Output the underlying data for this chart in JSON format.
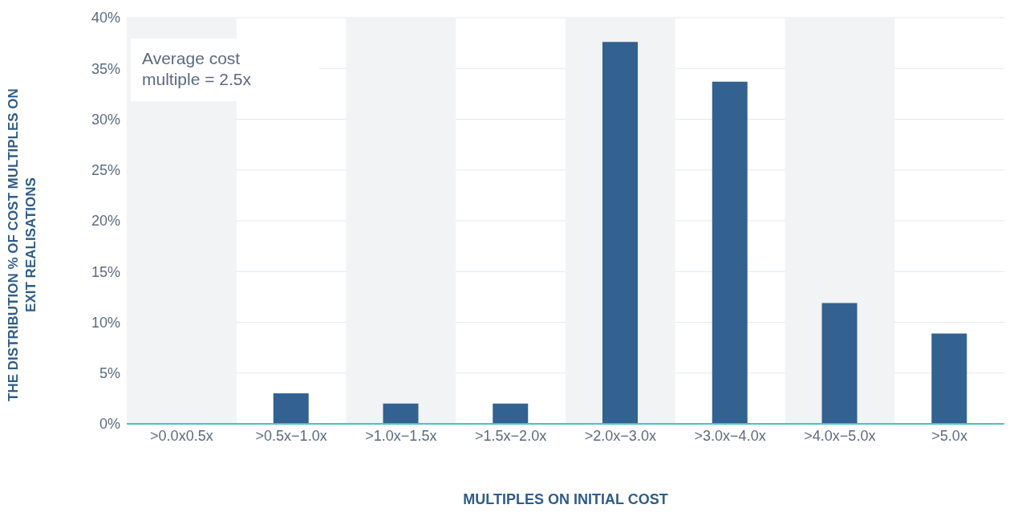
{
  "chart_data": {
    "type": "bar",
    "xlabel": "MULTIPLES ON INITIAL COST",
    "ylabel": "THE DISTRIBUTION % OF COST MULTIPLES ON EXIT REALISATIONS",
    "categories": [
      ">0.0x0.5x",
      ">0.5x−1.0x",
      ">1.0x−1.5x",
      ">1.5x−2.0x",
      ">2.0x−3.0x",
      ">3.0x−4.0x",
      ">4.0x−5.0x",
      ">5.0x"
    ],
    "values": [
      0,
      3,
      2,
      2,
      37.6,
      33.7,
      11.9,
      8.9
    ],
    "color": "#336190",
    "ylim": [
      0,
      40
    ],
    "yticks": [
      {
        "value": 0,
        "label": "0%"
      },
      {
        "value": 5,
        "label": "5%"
      },
      {
        "value": 10,
        "label": "10%"
      },
      {
        "value": 15,
        "label": "15%"
      },
      {
        "value": 20,
        "label": "20%"
      },
      {
        "value": 25,
        "label": "25%"
      },
      {
        "value": 30,
        "label": "30%"
      },
      {
        "value": 35,
        "label": "35%"
      },
      {
        "value": 40,
        "label": "40%"
      }
    ],
    "grid": "y",
    "bands": [
      {
        "axis": "x",
        "from": ">0.0x0.5x",
        "to": ">0.0x0.5x",
        "color": "#f1f3f5"
      },
      {
        "axis": "x",
        "from": ">1.0x−1.5x",
        "to": ">1.0x−1.5x",
        "color": "#f1f3f5"
      },
      {
        "axis": "x",
        "from": ">2.0x−3.0x",
        "to": ">2.0x−3.0x",
        "color": "#f1f3f5"
      },
      {
        "axis": "x",
        "from": ">4.0x−5.0x",
        "to": ">4.0x−5.0x",
        "color": "#f1f3f5"
      }
    ],
    "annotations": [
      "Average cost multiple = 2.5x"
    ]
  }
}
